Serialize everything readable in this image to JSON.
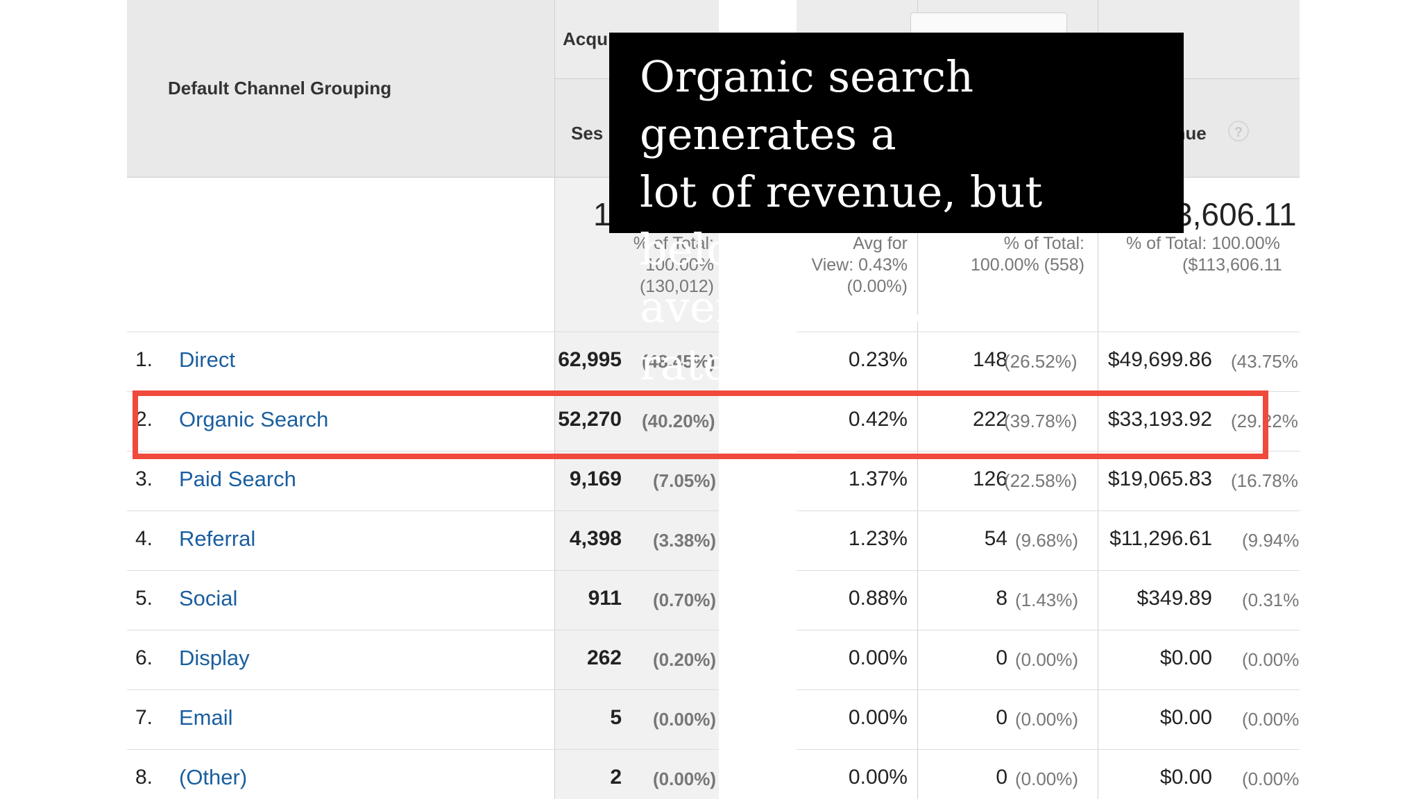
{
  "header": {
    "dimension_label": "Default Channel Grouping",
    "acquisition_label": "Acqu",
    "sessions_label": "Ses",
    "revenue_label": "enue",
    "help_icon": "?"
  },
  "totals": {
    "sessions_big": "1",
    "sessions_pct": [
      "% of Total:",
      "100.00%",
      "(130,012)"
    ],
    "conv_pct": [
      "Avg for",
      "View: 0.43%",
      "(0.00%)"
    ],
    "transactions_pct": [
      "% of Total:",
      "100.00% (558)"
    ],
    "revenue_big": "3,606.11",
    "revenue_pct": [
      "% of Total: 100.00%",
      "($113,606.11"
    ]
  },
  "rows": [
    {
      "num": "1.",
      "channel": "Direct",
      "sessions": "62,995",
      "sessions_pct": "(48.45%)",
      "conv": "0.23%",
      "trans": "148",
      "trans_pct": "(26.52%)",
      "revenue": "$49,699.86",
      "revenue_pct": "(43.75%"
    },
    {
      "num": "2.",
      "channel": "Organic Search",
      "sessions": "52,270",
      "sessions_pct": "(40.20%)",
      "conv": "0.42%",
      "trans": "222",
      "trans_pct": "(39.78%)",
      "revenue": "$33,193.92",
      "revenue_pct": "(29.22%"
    },
    {
      "num": "3.",
      "channel": "Paid Search",
      "sessions": "9,169",
      "sessions_pct": "(7.05%)",
      "conv": "1.37%",
      "trans": "126",
      "trans_pct": "(22.58%)",
      "revenue": "$19,065.83",
      "revenue_pct": "(16.78%"
    },
    {
      "num": "4.",
      "channel": "Referral",
      "sessions": "4,398",
      "sessions_pct": "(3.38%)",
      "conv": "1.23%",
      "trans": "54",
      "trans_pct": "(9.68%)",
      "revenue": "$11,296.61",
      "revenue_pct": "(9.94%"
    },
    {
      "num": "5.",
      "channel": "Social",
      "sessions": "911",
      "sessions_pct": "(0.70%)",
      "conv": "0.88%",
      "trans": "8",
      "trans_pct": "(1.43%)",
      "revenue": "$349.89",
      "revenue_pct": "(0.31%"
    },
    {
      "num": "6.",
      "channel": "Display",
      "sessions": "262",
      "sessions_pct": "(0.20%)",
      "conv": "0.00%",
      "trans": "0",
      "trans_pct": "(0.00%)",
      "revenue": "$0.00",
      "revenue_pct": "(0.00%"
    },
    {
      "num": "7.",
      "channel": "Email",
      "sessions": "5",
      "sessions_pct": "(0.00%)",
      "conv": "0.00%",
      "trans": "0",
      "trans_pct": "(0.00%)",
      "revenue": "$0.00",
      "revenue_pct": "(0.00%"
    },
    {
      "num": "8.",
      "channel": "(Other)",
      "sessions": "2",
      "sessions_pct": "(0.00%)",
      "conv": "0.00%",
      "trans": "0",
      "trans_pct": "(0.00%)",
      "revenue": "$0.00",
      "revenue_pct": "(0.00%"
    }
  ],
  "caption": {
    "lines": [
      "Organic search generates a",
      "lot of revenue, but below-",
      "average conversion rates"
    ]
  },
  "colors": {
    "link": "#1a5ea0",
    "highlight": "#ef4a3c",
    "header_bg": "#e9e9e9",
    "caption_bg": "#000000"
  }
}
